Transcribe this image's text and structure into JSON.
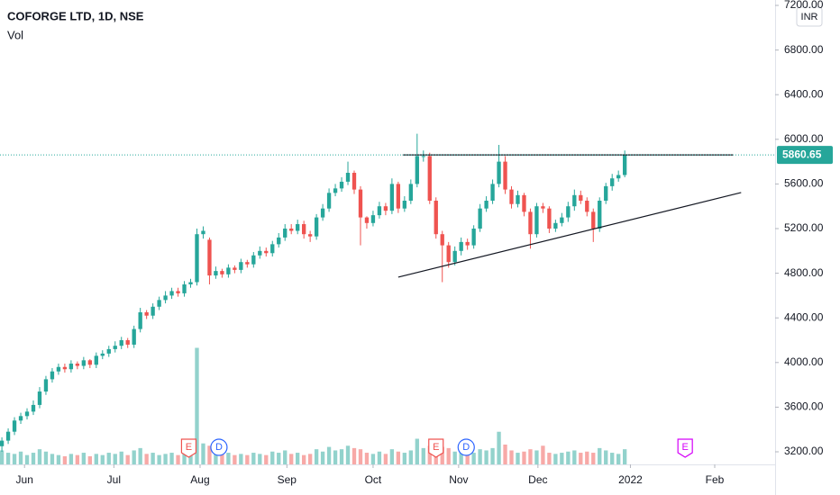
{
  "chart_data": {
    "type": "candlestick",
    "title": "COFORGE LTD, 1D, NSE",
    "volume_label": "Vol",
    "currency": "INR",
    "up_color": "#26a69a",
    "down_color": "#ef5350",
    "xlim": [
      -0.3,
      122.9
    ],
    "xticks": [
      {
        "value": 3.6,
        "label": "Jun"
      },
      {
        "value": 17.8,
        "label": "Jul"
      },
      {
        "value": 31.5,
        "label": "Aug"
      },
      {
        "value": 45.3,
        "label": "Sep"
      },
      {
        "value": 59.0,
        "label": "Oct"
      },
      {
        "value": 72.6,
        "label": "Nov"
      },
      {
        "value": 85.2,
        "label": "Dec"
      },
      {
        "value": 99.9,
        "label": "2022"
      },
      {
        "value": 113.3,
        "label": "Feb"
      }
    ],
    "ylim": [
      3120,
      7200
    ],
    "yticks": [
      {
        "value": 3200,
        "label": "3200.00"
      },
      {
        "value": 3600,
        "label": "3600.00"
      },
      {
        "value": 4000,
        "label": "4000.00"
      },
      {
        "value": 4400,
        "label": "4400.00"
      },
      {
        "value": 4800,
        "label": "4800.00"
      },
      {
        "value": 5200,
        "label": "5200.00"
      },
      {
        "value": 5600,
        "label": "5600.00"
      },
      {
        "value": 6000,
        "label": "6000.00"
      },
      {
        "value": 6400,
        "label": "6400.00"
      },
      {
        "value": 6800,
        "label": "6800.00"
      },
      {
        "value": 7200,
        "label": "7200.00"
      }
    ],
    "last_price": {
      "value": 5860.65,
      "label": "5860.65"
    },
    "open": [
      3250,
      3300,
      3380,
      3480,
      3520,
      3560,
      3620,
      3740,
      3850,
      3920,
      3960,
      3940,
      3990,
      3970,
      4020,
      3980,
      4060,
      4080,
      4120,
      4150,
      4200,
      4160,
      4300,
      4450,
      4420,
      4500,
      4560,
      4600,
      4640,
      4620,
      4700,
      4720,
      5150,
      5100,
      4780,
      4820,
      4790,
      4850,
      4830,
      4900,
      4880,
      4960,
      5000,
      4980,
      5060,
      5120,
      5200,
      5180,
      5240,
      5150,
      5130,
      5300,
      5380,
      5520,
      5560,
      5620,
      5700,
      5550,
      5300,
      5250,
      5320,
      5400,
      5360,
      5600,
      5380,
      5450,
      5600,
      5850,
      5850,
      5450,
      5150,
      5050,
      4900,
      5000,
      5080,
      5050,
      5200,
      5380,
      5450,
      5600,
      5800,
      5550,
      5420,
      5500,
      5350,
      5150,
      5400,
      5380,
      5200,
      5250,
      5300,
      5400,
      5500,
      5450,
      5350,
      5200,
      5450,
      5580,
      5650,
      5680
    ],
    "high": [
      3330,
      3410,
      3510,
      3550,
      3590,
      3660,
      3780,
      3880,
      3950,
      3990,
      3990,
      4020,
      4010,
      4050,
      4030,
      4090,
      4110,
      4150,
      4190,
      4230,
      4220,
      4330,
      4490,
      4470,
      4530,
      4590,
      4640,
      4670,
      4670,
      4730,
      4750,
      5200,
      5220,
      5120,
      4860,
      4840,
      4880,
      4870,
      4930,
      4920,
      4990,
      5040,
      5030,
      5090,
      5160,
      5240,
      5240,
      5280,
      5270,
      5180,
      5330,
      5420,
      5560,
      5600,
      5660,
      5800,
      5720,
      5580,
      5310,
      5360,
      5440,
      5430,
      5650,
      5620,
      5490,
      5640,
      6050,
      5900,
      5880,
      5480,
      5180,
      5080,
      5040,
      5120,
      5110,
      5230,
      5420,
      5490,
      5640,
      5950,
      5850,
      5580,
      5540,
      5520,
      5380,
      5430,
      5430,
      5400,
      5280,
      5340,
      5440,
      5550,
      5540,
      5480,
      5380,
      5480,
      5610,
      5690,
      5720,
      5900
    ],
    "low": [
      3200,
      3270,
      3350,
      3450,
      3490,
      3530,
      3590,
      3710,
      3820,
      3890,
      3910,
      3910,
      3940,
      3940,
      3950,
      3950,
      4030,
      4050,
      4090,
      4120,
      4130,
      4130,
      4270,
      4390,
      4390,
      4470,
      4530,
      4570,
      4590,
      4590,
      4670,
      4690,
      5110,
      4700,
      4750,
      4760,
      4760,
      4800,
      4800,
      4850,
      4850,
      4930,
      4950,
      4950,
      5030,
      5090,
      5150,
      5150,
      5110,
      5080,
      5100,
      5270,
      5350,
      5490,
      5530,
      5590,
      5510,
      5050,
      5200,
      5220,
      5290,
      5320,
      5330,
      5340,
      5350,
      5420,
      5570,
      5800,
      5420,
      5110,
      4720,
      4850,
      4870,
      4960,
      5010,
      5020,
      5170,
      5350,
      5420,
      5570,
      5510,
      5380,
      5390,
      5310,
      5020,
      5120,
      5340,
      5160,
      5170,
      5220,
      5260,
      5360,
      5420,
      5310,
      5080,
      5170,
      5420,
      5540,
      5620,
      5660
    ],
    "close": [
      3300,
      3380,
      3480,
      3520,
      3560,
      3620,
      3740,
      3850,
      3920,
      3960,
      3940,
      3990,
      3970,
      4020,
      3980,
      4060,
      4080,
      4120,
      4150,
      4200,
      4160,
      4300,
      4450,
      4420,
      4500,
      4560,
      4600,
      4640,
      4620,
      4700,
      4720,
      5150,
      5180,
      4780,
      4820,
      4790,
      4850,
      4830,
      4900,
      4880,
      4960,
      5000,
      4980,
      5060,
      5120,
      5200,
      5180,
      5240,
      5150,
      5130,
      5300,
      5380,
      5520,
      5560,
      5620,
      5700,
      5550,
      5300,
      5250,
      5320,
      5400,
      5360,
      5600,
      5380,
      5450,
      5600,
      5850,
      5850,
      5450,
      5150,
      5050,
      4900,
      5000,
      5080,
      5050,
      5200,
      5380,
      5450,
      5600,
      5800,
      5550,
      5420,
      5500,
      5350,
      5150,
      5400,
      5380,
      5200,
      5250,
      5300,
      5400,
      5500,
      5450,
      5350,
      5200,
      5450,
      5580,
      5650,
      5680,
      5860.65
    ],
    "volume_lim": [
      0,
      10.5
    ],
    "volume": [
      1.2,
      1.0,
      0.9,
      1.1,
      0.8,
      1.0,
      1.3,
      1.1,
      0.9,
      0.8,
      0.7,
      0.9,
      0.8,
      1.0,
      0.7,
      0.9,
      0.8,
      1.0,
      0.9,
      1.1,
      0.8,
      1.2,
      1.4,
      0.9,
      1.0,
      0.8,
      0.9,
      1.0,
      0.8,
      1.1,
      1.3,
      10.0,
      1.8,
      1.6,
      1.1,
      0.9,
      1.0,
      0.8,
      0.9,
      0.8,
      1.0,
      0.9,
      0.8,
      1.1,
      1.0,
      1.2,
      0.9,
      1.0,
      0.8,
      0.9,
      1.3,
      1.1,
      1.5,
      1.2,
      1.3,
      1.6,
      1.4,
      1.3,
      1.0,
      0.9,
      1.1,
      0.9,
      1.3,
      1.1,
      1.0,
      1.2,
      2.2,
      1.4,
      1.6,
      1.8,
      1.5,
      1.4,
      1.1,
      1.0,
      0.9,
      1.0,
      1.3,
      1.2,
      1.4,
      2.8,
      1.7,
      1.2,
      1.0,
      1.1,
      1.3,
      1.2,
      1.6,
      1.0,
      0.9,
      1.0,
      1.1,
      1.2,
      1.0,
      1.1,
      1.0,
      1.4,
      1.2,
      1.0,
      0.9,
      1.3
    ],
    "events": [
      {
        "x": 29.7,
        "label": "E",
        "color": "#ef5350"
      },
      {
        "x": 34.5,
        "label": "D",
        "color": "#2962ff"
      },
      {
        "x": 69.0,
        "label": "E",
        "color": "#ef5350"
      },
      {
        "x": 73.8,
        "label": "D",
        "color": "#2962ff"
      },
      {
        "x": 108.6,
        "label": "E",
        "color": "#d500f9"
      }
    ],
    "drawings": [
      {
        "x": [
          63.7,
          116.2
        ],
        "y": [
          5860,
          5860
        ]
      },
      {
        "x": [
          63.0,
          117.5
        ],
        "y": [
          4765,
          5523
        ]
      }
    ]
  }
}
